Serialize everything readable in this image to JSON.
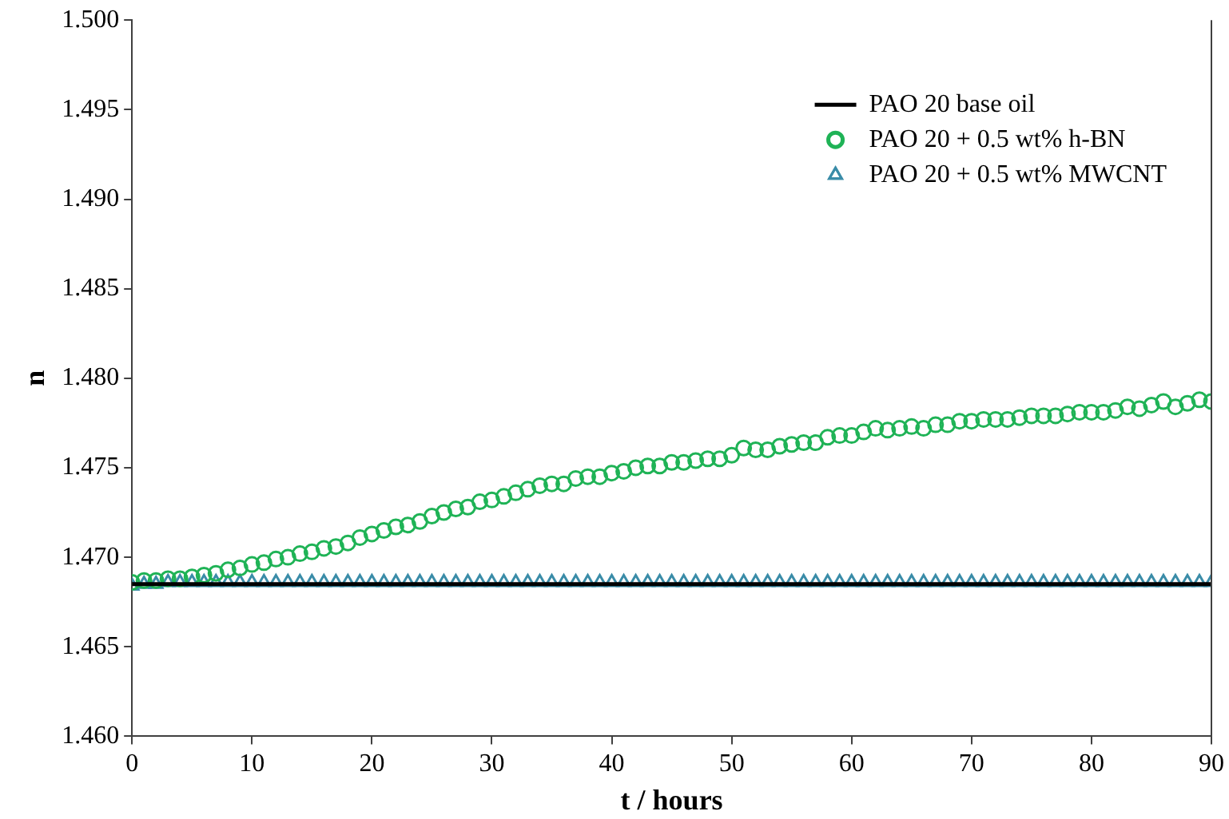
{
  "chart_data": {
    "type": "scatter",
    "xlabel": "t / hours",
    "ylabel": "n",
    "xlim": [
      0,
      90
    ],
    "xticks": [
      0,
      10,
      20,
      30,
      40,
      50,
      60,
      70,
      80,
      90
    ],
    "ylim": [
      1.46,
      1.5
    ],
    "yticks": [
      {
        "value": 1.46,
        "label": "1.460"
      },
      {
        "value": 1.465,
        "label": "1.465"
      },
      {
        "value": 1.47,
        "label": "1.470"
      },
      {
        "value": 1.475,
        "label": "1.475"
      },
      {
        "value": 1.48,
        "label": "1.480"
      },
      {
        "value": 1.485,
        "label": "1.485"
      },
      {
        "value": 1.49,
        "label": "1.490"
      },
      {
        "value": 1.495,
        "label": "1.495"
      },
      {
        "value": 1.5,
        "label": "1.500"
      }
    ],
    "grid": false,
    "legend": "top right",
    "series": [
      {
        "name": "PAO 20 base oil",
        "type": "line",
        "color": "#000000",
        "marker": "none",
        "line_style": "solid",
        "x": [
          0,
          90
        ],
        "values": [
          1.4685,
          1.4685
        ]
      },
      {
        "name": "PAO 20 + 0.5 wt% h-BN",
        "type": "scatter",
        "color": "#1fb356",
        "marker": "circle",
        "x": [
          0,
          1,
          2,
          3,
          4,
          5,
          6,
          7,
          8,
          9,
          10,
          11,
          12,
          13,
          14,
          15,
          16,
          17,
          18,
          19,
          20,
          21,
          22,
          23,
          24,
          25,
          26,
          27,
          28,
          29,
          30,
          31,
          32,
          33,
          34,
          35,
          36,
          37,
          38,
          39,
          40,
          41,
          42,
          43,
          44,
          45,
          46,
          47,
          48,
          49,
          50,
          51,
          52,
          53,
          54,
          55,
          56,
          57,
          58,
          59,
          60,
          61,
          62,
          63,
          64,
          65,
          66,
          67,
          68,
          69,
          70,
          71,
          72,
          73,
          74,
          75,
          76,
          77,
          78,
          79,
          80,
          81,
          82,
          83,
          84,
          85,
          86,
          87,
          88,
          89,
          90
        ],
        "values": [
          1.4686,
          1.4687,
          1.4687,
          1.4688,
          1.4688,
          1.4689,
          1.469,
          1.4691,
          1.4693,
          1.4694,
          1.4696,
          1.4697,
          1.4699,
          1.47,
          1.4702,
          1.4703,
          1.4705,
          1.4706,
          1.4708,
          1.4711,
          1.4713,
          1.4715,
          1.4717,
          1.4718,
          1.472,
          1.4723,
          1.4725,
          1.4727,
          1.4728,
          1.4731,
          1.4732,
          1.4734,
          1.4736,
          1.4738,
          1.474,
          1.4741,
          1.4741,
          1.4744,
          1.4745,
          1.4745,
          1.4747,
          1.4748,
          1.475,
          1.4751,
          1.4751,
          1.4753,
          1.4753,
          1.4754,
          1.4755,
          1.4755,
          1.4757,
          1.4761,
          1.476,
          1.476,
          1.4762,
          1.4763,
          1.4764,
          1.4764,
          1.4767,
          1.4768,
          1.4768,
          1.477,
          1.4772,
          1.4771,
          1.4772,
          1.4773,
          1.4772,
          1.4774,
          1.4774,
          1.4776,
          1.4776,
          1.4777,
          1.4777,
          1.4777,
          1.4778,
          1.4779,
          1.4779,
          1.4779,
          1.478,
          1.4781,
          1.4781,
          1.4781,
          1.4782,
          1.4784,
          1.4783,
          1.4785,
          1.4787,
          1.4784,
          1.4786,
          1.4788,
          1.4787
        ]
      },
      {
        "name": "PAO 20 + 0.5 wt% MWCNT",
        "type": "scatter",
        "color": "#3a8ca8",
        "marker": "triangle",
        "x": [
          0,
          1,
          2,
          3,
          4,
          5,
          6,
          7,
          8,
          9,
          10,
          11,
          12,
          13,
          14,
          15,
          16,
          17,
          18,
          19,
          20,
          21,
          22,
          23,
          24,
          25,
          26,
          27,
          28,
          29,
          30,
          31,
          32,
          33,
          34,
          35,
          36,
          37,
          38,
          39,
          40,
          41,
          42,
          43,
          44,
          45,
          46,
          47,
          48,
          49,
          50,
          51,
          52,
          53,
          54,
          55,
          56,
          57,
          58,
          59,
          60,
          61,
          62,
          63,
          64,
          65,
          66,
          67,
          68,
          69,
          70,
          71,
          72,
          73,
          74,
          75,
          76,
          77,
          78,
          79,
          80,
          81,
          82,
          83,
          84,
          85,
          86,
          87,
          88,
          89,
          90
        ],
        "values": [
          1.4684,
          1.4685,
          1.4685,
          1.4686,
          1.4686,
          1.4686,
          1.4686,
          1.4686,
          1.4686,
          1.4686,
          1.4686,
          1.4686,
          1.4686,
          1.4686,
          1.4686,
          1.4686,
          1.4686,
          1.4686,
          1.4686,
          1.4686,
          1.4686,
          1.4686,
          1.4686,
          1.4686,
          1.4686,
          1.4686,
          1.4686,
          1.4686,
          1.4686,
          1.4686,
          1.4686,
          1.4686,
          1.4686,
          1.4686,
          1.4686,
          1.4686,
          1.4686,
          1.4686,
          1.4686,
          1.4686,
          1.4686,
          1.4686,
          1.4686,
          1.4686,
          1.4686,
          1.4686,
          1.4686,
          1.4686,
          1.4686,
          1.4686,
          1.4686,
          1.4686,
          1.4686,
          1.4686,
          1.4686,
          1.4686,
          1.4686,
          1.4686,
          1.4686,
          1.4686,
          1.4686,
          1.4686,
          1.4686,
          1.4686,
          1.4686,
          1.4686,
          1.4686,
          1.4686,
          1.4686,
          1.4686,
          1.4686,
          1.4686,
          1.4686,
          1.4686,
          1.4686,
          1.4686,
          1.4686,
          1.4686,
          1.4686,
          1.4686,
          1.4686,
          1.4686,
          1.4686,
          1.4686,
          1.4686,
          1.4686,
          1.4686,
          1.4686,
          1.4686,
          1.4686,
          1.4686
        ]
      }
    ]
  }
}
